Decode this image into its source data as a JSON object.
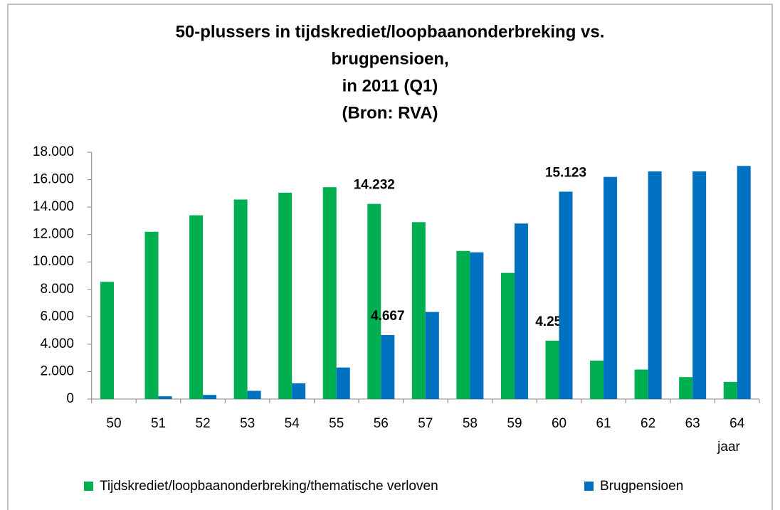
{
  "chart_data": {
    "type": "bar",
    "title": [
      "50-plussers in tijdskrediet/loopbaanonderbreking vs.",
      "brugpensioen,",
      "in 2011 (Q1)",
      "(Bron: RVA)"
    ],
    "x_label": "jaar",
    "categories": [
      "50",
      "51",
      "52",
      "53",
      "54",
      "55",
      "56",
      "57",
      "58",
      "59",
      "60",
      "61",
      "62",
      "63",
      "64"
    ],
    "series": [
      {
        "name": "Tijdskrediet/loopbaanonderbreking/thematische verloven",
        "color": "#00b050",
        "values": [
          8550,
          12200,
          13400,
          14550,
          15050,
          15450,
          14232,
          12900,
          10800,
          9200,
          4255,
          2800,
          2150,
          1600,
          1250
        ],
        "value_labels": [
          null,
          null,
          null,
          null,
          null,
          null,
          "14.232",
          null,
          null,
          null,
          "4.255",
          null,
          null,
          null,
          null
        ]
      },
      {
        "name": "Brugpensioen",
        "color": "#0070c0",
        "values": [
          0,
          200,
          300,
          600,
          1150,
          2300,
          4667,
          6350,
          10700,
          12800,
          15123,
          16200,
          16600,
          16600,
          17000
        ],
        "value_labels": [
          null,
          null,
          null,
          null,
          null,
          null,
          "4.667",
          null,
          null,
          null,
          "15.123",
          null,
          null,
          null,
          null
        ]
      }
    ],
    "ylim": [
      0,
      18000
    ],
    "yticks": [
      0,
      {
        "value": 2000,
        "label": "2.000"
      },
      {
        "value": 4000,
        "label": "4.000"
      },
      {
        "value": 6000,
        "label": "6.000"
      },
      {
        "value": 8000,
        "label": "8.000"
      },
      {
        "value": 10000,
        "label": "10.000"
      },
      {
        "value": 12000,
        "label": "12.000"
      },
      {
        "value": 14000,
        "label": "14.000"
      },
      {
        "value": 16000,
        "label": "16.000"
      },
      {
        "value": 18000,
        "label": "18.000"
      }
    ],
    "legend": "bottom"
  }
}
